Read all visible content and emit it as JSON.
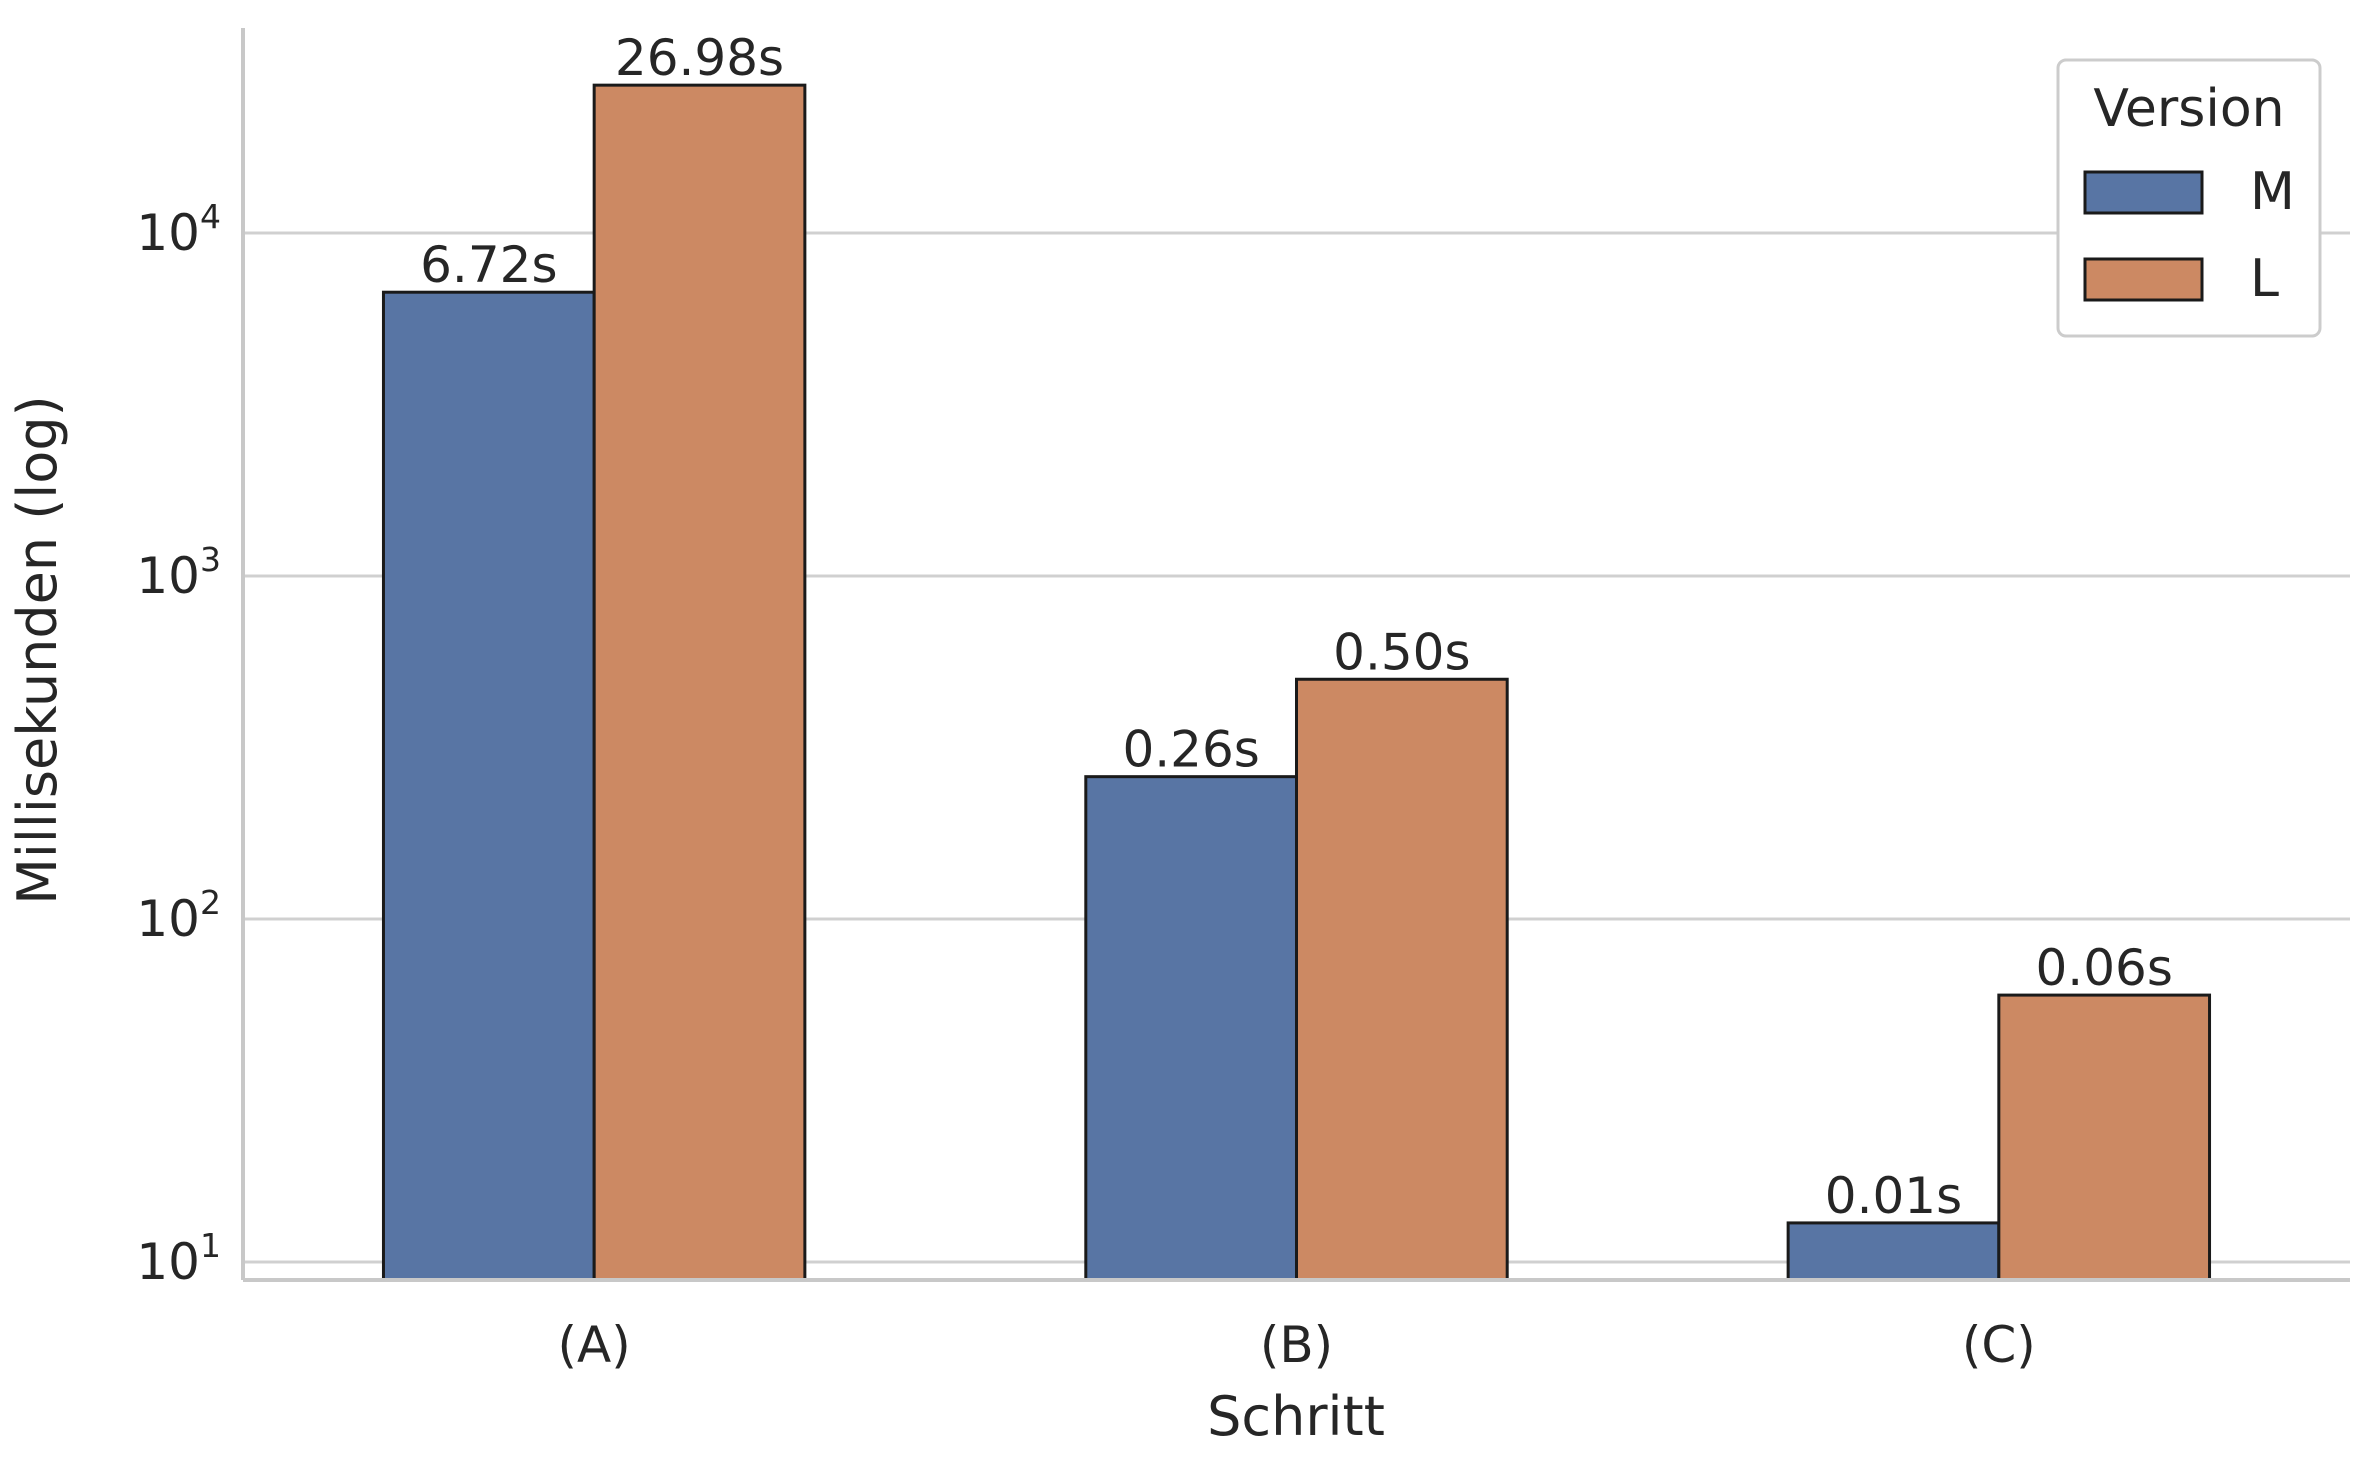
{
  "chart_data": {
    "type": "bar",
    "categories": [
      "(A)",
      "(B)",
      "(C)"
    ],
    "series": [
      {
        "name": "M",
        "values": [
          6720,
          260,
          13
        ],
        "labels": [
          "6.72s",
          "0.26s",
          "0.01s"
        ]
      },
      {
        "name": "L",
        "values": [
          26980,
          500,
          60
        ],
        "labels": [
          "26.98s",
          "0.50s",
          "0.06s"
        ]
      }
    ],
    "title": "",
    "xlabel": "Schritt",
    "ylabel": "Millisekunden (log)",
    "yscale": "log",
    "ylim": [
      8.5,
      60000
    ],
    "yticks": [
      10,
      100,
      1000,
      10000
    ],
    "ytick_exponents": [
      "1",
      "2",
      "3",
      "4"
    ],
    "ytick_base": "10",
    "grid": "horizontal",
    "legend": {
      "title": "Version",
      "placement": "top-right"
    },
    "colors": {
      "M": "#5875a4",
      "L": "#cc8963"
    }
  }
}
